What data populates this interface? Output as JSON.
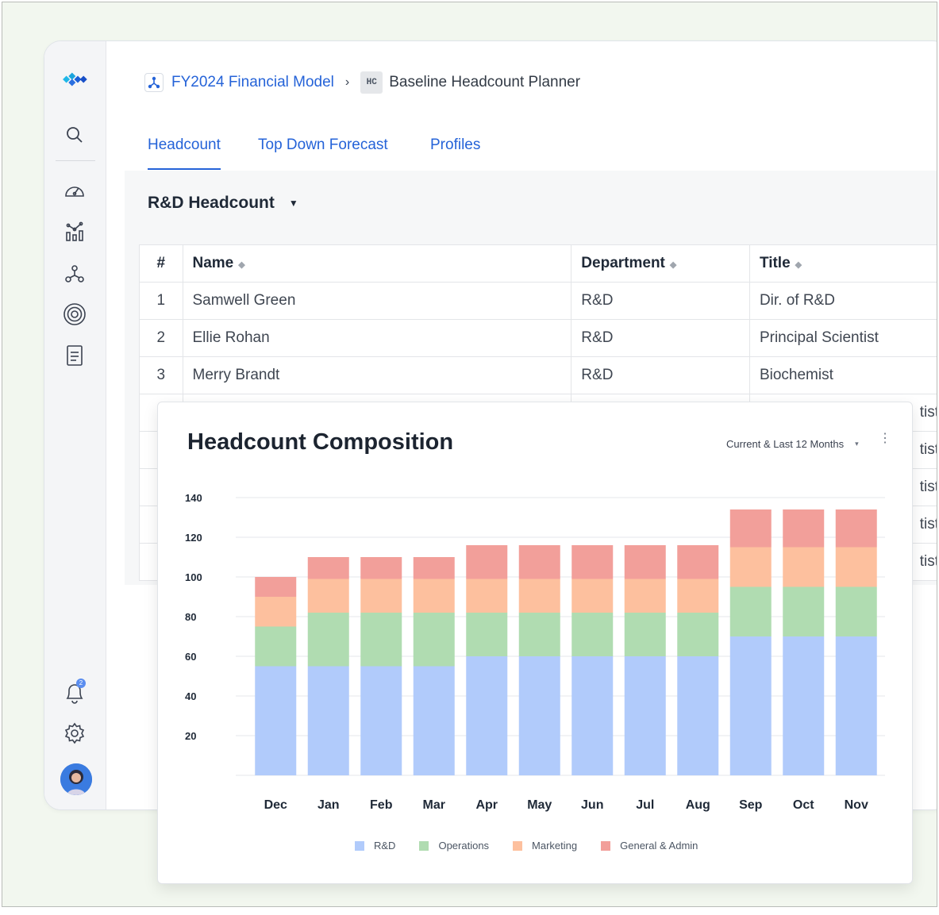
{
  "breadcrumb": {
    "model": "FY2024 Financial Model",
    "separator": "›",
    "planner_badge": "HC",
    "planner": "Baseline Headcount Planner"
  },
  "tabs": [
    {
      "label": "Headcount",
      "active": true
    },
    {
      "label": "Top Down Forecast",
      "active": false
    },
    {
      "label": "Profiles",
      "active": false
    }
  ],
  "view": {
    "title": "R&D Headcount",
    "caret": "▼"
  },
  "table": {
    "columns": [
      "#",
      "Name",
      "Department",
      "Title"
    ],
    "rows": [
      [
        "1",
        "Samwell Green",
        "R&D",
        "Dir. of R&D"
      ],
      [
        "2",
        "Ellie Rohan",
        "R&D",
        "Principal Scientist"
      ],
      [
        "3",
        "Merry Brandt",
        "R&D",
        "Biochemist"
      ]
    ],
    "hidden_row_title_fragments": [
      "tist",
      "tist",
      "tist",
      "tist",
      "tist"
    ]
  },
  "sidebar": {
    "icons": [
      "logo-icon",
      "search-icon",
      "dashboard-icon",
      "analytics-icon",
      "network-icon",
      "target-icon",
      "document-icon",
      "bell-icon",
      "gear-icon"
    ],
    "notification_count": "2"
  },
  "chart_card": {
    "title": "Headcount Composition",
    "range": "Current & Last 12 Months",
    "range_caret": "▾",
    "menu": "⋮"
  },
  "chart_data": {
    "type": "bar",
    "stacked": true,
    "categories": [
      "Dec",
      "Jan",
      "Feb",
      "Mar",
      "Apr",
      "May",
      "Jun",
      "Jul",
      "Aug",
      "Sep",
      "Oct",
      "Nov"
    ],
    "series": [
      {
        "name": "R&D",
        "color": "#b1cbfb",
        "values": [
          55,
          55,
          55,
          55,
          60,
          60,
          60,
          60,
          60,
          70,
          70,
          70
        ]
      },
      {
        "name": "Operations",
        "color": "#b0dcb1",
        "values": [
          20,
          27,
          27,
          27,
          22,
          22,
          22,
          22,
          22,
          25,
          25,
          25
        ]
      },
      {
        "name": "Marketing",
        "color": "#fdc09e",
        "values": [
          15,
          17,
          17,
          17,
          17,
          17,
          17,
          17,
          17,
          20,
          20,
          20
        ]
      },
      {
        "name": "General & Admin",
        "color": "#f29f9a",
        "values": [
          10,
          11,
          11,
          11,
          17,
          17,
          17,
          17,
          17,
          19,
          19,
          19
        ]
      }
    ],
    "ylim": [
      0,
      140
    ],
    "yticks": [
      20,
      40,
      60,
      80,
      100,
      120,
      140
    ],
    "grid": true,
    "legend": "bottom"
  }
}
